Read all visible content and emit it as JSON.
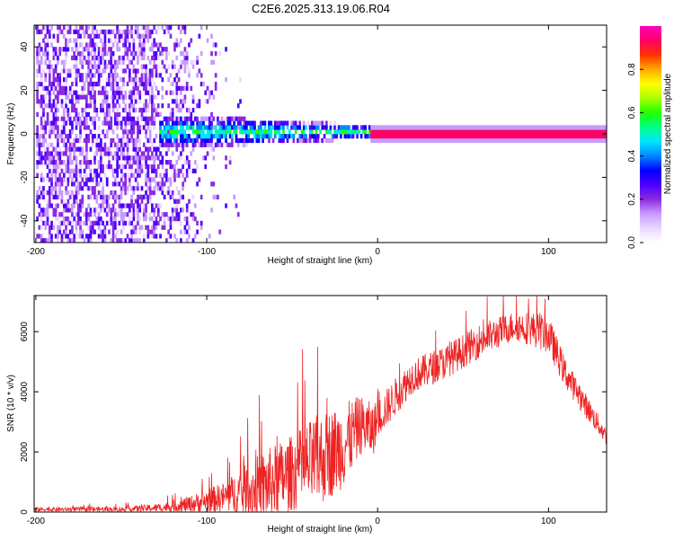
{
  "figure_title": "C2E6.2025.313.19.06.R04",
  "chart_data": [
    {
      "type": "heatmap",
      "xlabel": "Height of straight line (km)",
      "ylabel": "Frequency (Hz)",
      "xlim": [
        -201,
        134
      ],
      "ylim": [
        -50,
        50
      ],
      "xticks": [
        -200,
        -100,
        0,
        100
      ],
      "yticks": [
        -40,
        -20,
        0,
        20,
        40
      ],
      "colorbar": {
        "label": "Normalized spectral amplitude",
        "range": [
          0,
          1
        ],
        "ticks": [
          "0.0",
          "0.2",
          "0.4",
          "0.6",
          "0.8"
        ],
        "colors": [
          "#ffffff",
          "#e9d8ff",
          "#c79cff",
          "#8a2be2",
          "#4b00ff",
          "#0000ff",
          "#0088ff",
          "#00e5ff",
          "#00ff88",
          "#22ff00",
          "#aaff00",
          "#ffff00",
          "#ffaa00",
          "#ff3300",
          "#ff0066",
          "#ff00bb"
        ]
      },
      "features": [
        {
          "region": "broadband noise",
          "x_range": [
            -200,
            -80
          ],
          "freq_range": [
            -50,
            50
          ],
          "amplitude": 0.2
        },
        {
          "region": "narrowing signal band",
          "x_range": [
            -128,
            -5
          ],
          "freq_range": [
            -8,
            8
          ],
          "amplitude": 0.45
        },
        {
          "region": "steady tone near 0 Hz",
          "x_range": [
            -5,
            134
          ],
          "freq_range": [
            -1,
            1
          ],
          "amplitude": 0.95
        }
      ]
    },
    {
      "type": "line",
      "xlabel": "Height of straight line (km)",
      "ylabel": "SNR (10 * v/v)",
      "xlim": [
        -201,
        134
      ],
      "ylim": [
        0,
        7200
      ],
      "xticks": [
        -200,
        -100,
        0,
        100
      ],
      "yticks": [
        0,
        2000,
        4000,
        6000
      ],
      "color": "#ee2222",
      "envelope": {
        "x": [
          -201,
          -150,
          -125,
          -110,
          -90,
          -75,
          -65,
          -50,
          -35,
          -20,
          -10,
          -3,
          0,
          10,
          20,
          40,
          60,
          80,
          90,
          100,
          110,
          120,
          134
        ],
        "base": [
          90,
          90,
          150,
          250,
          500,
          700,
          900,
          1300,
          1700,
          2200,
          2900,
          2700,
          3100,
          3800,
          4500,
          5000,
          5700,
          6200,
          6100,
          5900,
          4600,
          3700,
          2500
        ],
        "spread": [
          100,
          120,
          200,
          400,
          700,
          1400,
          1700,
          1800,
          2200,
          2000,
          1400,
          1300,
          900,
          900,
          800,
          800,
          800,
          700,
          800,
          900,
          700,
          600,
          400
        ]
      }
    }
  ]
}
